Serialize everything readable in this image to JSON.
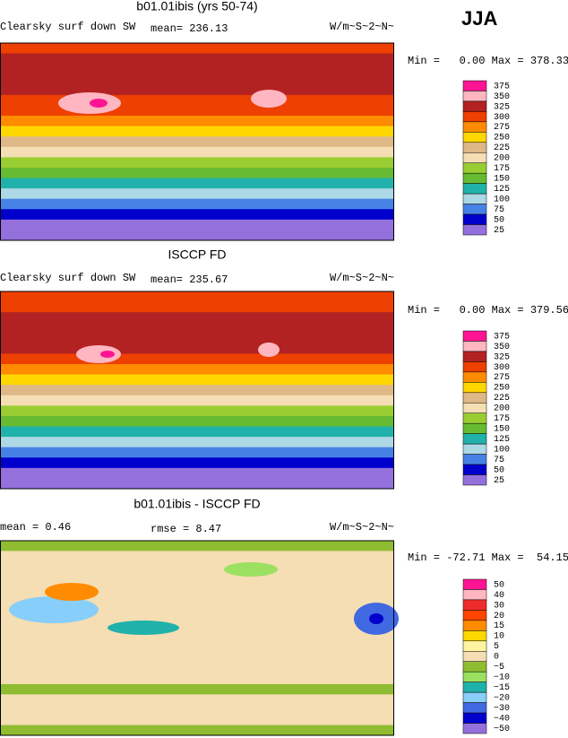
{
  "season": "JJA",
  "panels": [
    {
      "title": "b01.01ibis (yrs 50-74)",
      "left_label": "Clearsky surf down SW",
      "stat": "mean= 236.13",
      "units": "W/m~S~2~N~",
      "range": "Min =   0.00 Max = 378.33",
      "colorbar": {
        "labels": [
          "375",
          "350",
          "325",
          "300",
          "275",
          "250",
          "225",
          "200",
          "175",
          "150",
          "125",
          "100",
          "75",
          "50",
          "25"
        ],
        "colors": [
          "#ff1493",
          "#ffb6c1",
          "#b22222",
          "#ee4000",
          "#ff8c00",
          "#ffd700",
          "#deb887",
          "#f5deb3",
          "#9acd32",
          "#66bb33",
          "#20b2aa",
          "#add8e6",
          "#4682e6",
          "#0000cd",
          "#9370db"
        ]
      }
    },
    {
      "title": "ISCCP FD",
      "left_label": "Clearsky surf down SW",
      "stat": "mean= 235.67",
      "units": "W/m~S~2~N~",
      "range": "Min =   0.00 Max = 379.56",
      "colorbar": {
        "labels": [
          "375",
          "350",
          "325",
          "300",
          "275",
          "250",
          "225",
          "200",
          "175",
          "150",
          "125",
          "100",
          "75",
          "50",
          "25"
        ],
        "colors": [
          "#ff1493",
          "#ffb6c1",
          "#b22222",
          "#ee4000",
          "#ff8c00",
          "#ffd700",
          "#deb887",
          "#f5deb3",
          "#9acd32",
          "#66bb33",
          "#20b2aa",
          "#add8e6",
          "#4682e6",
          "#0000cd",
          "#9370db"
        ]
      }
    },
    {
      "title": "b01.01ibis - ISCCP FD",
      "left_label": "mean =   0.46",
      "stat": "rmse =   8.47",
      "units": "W/m~S~2~N~",
      "range": "Min = -72.71 Max =  54.15",
      "colorbar": {
        "labels": [
          "50",
          "40",
          "30",
          "20",
          "15",
          "10",
          "5",
          "0",
          "−5",
          "−10",
          "−15",
          "−20",
          "−30",
          "−40",
          "−50"
        ],
        "colors": [
          "#ff1493",
          "#ffb6c1",
          "#ee2c2c",
          "#ff4500",
          "#ff8c00",
          "#ffd700",
          "#fff5a0",
          "#f5deb3",
          "#8fbc30",
          "#9be060",
          "#20b2aa",
          "#87cefa",
          "#4169e1",
          "#0000cd",
          "#9370db"
        ]
      }
    }
  ]
}
